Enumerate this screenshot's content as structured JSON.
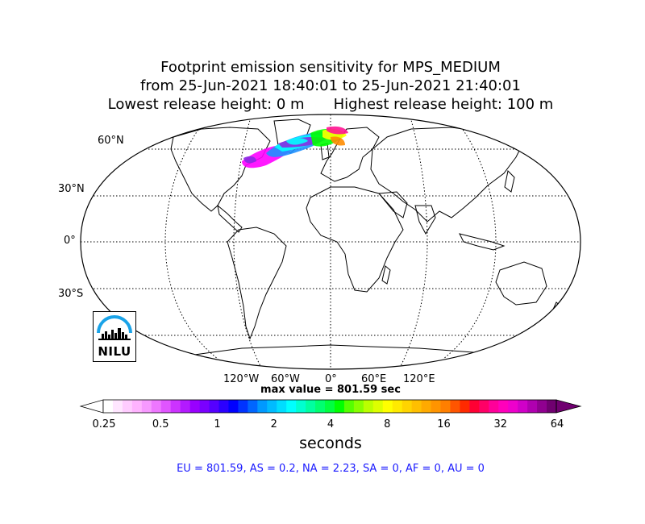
{
  "title": {
    "line1": "Footprint emission sensitivity for MPS_MEDIUM",
    "line2": "from 25-Jun-2021 18:40:01 to 25-Jun-2021 21:40:01",
    "lowest": "Lowest release height: 0 m",
    "highest": "Highest release height: 100 m"
  },
  "map": {
    "projection": "Robinson",
    "lat_labels": [
      "60°N",
      "30°N",
      "0°",
      "30°S"
    ],
    "lon_labels": [
      "120°W",
      "60°W",
      "0°",
      "60°E",
      "120°E"
    ],
    "graticule": "dotted",
    "plume_colors": [
      "#ff00ff",
      "#8a2be2",
      "#1e90ff",
      "#00ffff",
      "#00ff00",
      "#ffff00",
      "#ff8c00",
      "#ff1493"
    ]
  },
  "max_value": "max value = 801.59 sec",
  "colorbar": {
    "ticks": [
      "0.25",
      "0.5",
      "1",
      "2",
      "4",
      "8",
      "16",
      "32",
      "64"
    ],
    "unit_label": "seconds",
    "colors": [
      "#ffffff",
      "#ffe6ff",
      "#ffccff",
      "#ffb3ff",
      "#f799ff",
      "#ee77ff",
      "#e055ff",
      "#cc33ff",
      "#b31aff",
      "#9900ff",
      "#7a00ff",
      "#5500ff",
      "#2b00ff",
      "#0000ff",
      "#0033ff",
      "#0066ff",
      "#0099ff",
      "#00bbff",
      "#00ddff",
      "#00ffff",
      "#00ffd0",
      "#00ffa0",
      "#00ff70",
      "#00ff40",
      "#00ff00",
      "#55ff00",
      "#88ff00",
      "#bbff00",
      "#ddff00",
      "#ffff00",
      "#ffea00",
      "#ffd400",
      "#ffbf00",
      "#ffaa00",
      "#ff9400",
      "#ff7f00",
      "#ff5500",
      "#ff2a00",
      "#ff0033",
      "#ff0066",
      "#ff0099",
      "#ff00bb",
      "#ee00cc",
      "#d000c8",
      "#b000b0",
      "#900090",
      "#700070"
    ]
  },
  "regions": "EU = 801.59,  AS = 0.2,  NA = 2.23,  SA = 0,  AF = 0,  AU = 0",
  "logo": {
    "text": "NILU",
    "icon": "nilu-city-skyline-icon"
  }
}
